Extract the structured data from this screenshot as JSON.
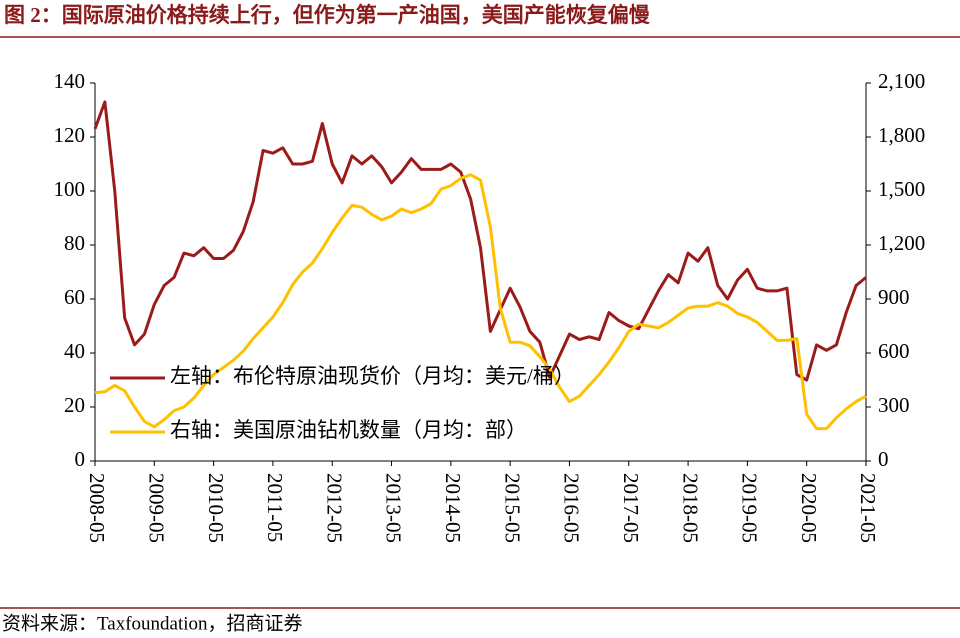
{
  "chart_data": {
    "type": "line",
    "title": "图 2：国际原油价格持续上行，但作为第一产油国，美国产能恢复偏慢",
    "source": "资料来源：Taxfoundation，招商证券",
    "categories": [
      "2008-05",
      null,
      null,
      null,
      null,
      null,
      "2009-05",
      null,
      null,
      null,
      null,
      null,
      "2010-05",
      null,
      null,
      null,
      null,
      null,
      "2011-05",
      null,
      null,
      null,
      null,
      null,
      "2012-05",
      null,
      null,
      null,
      null,
      null,
      "2013-05",
      null,
      null,
      null,
      null,
      null,
      "2014-05",
      null,
      null,
      null,
      null,
      null,
      "2015-05",
      null,
      null,
      null,
      null,
      null,
      "2016-05",
      null,
      null,
      null,
      null,
      null,
      "2017-05",
      null,
      null,
      null,
      null,
      null,
      "2018-05",
      null,
      null,
      null,
      null,
      null,
      "2019-05",
      null,
      null,
      null,
      null,
      null,
      "2020-05",
      null,
      null,
      null,
      null,
      null,
      "2021-05"
    ],
    "series": [
      {
        "name": "左轴：布伦特原油现货价（月均：美元/桶）",
        "color": "#9b1b1b",
        "axis": "y",
        "values": [
          123,
          133,
          100,
          53,
          43,
          47,
          58,
          65,
          68,
          77,
          76,
          79,
          75,
          75,
          78,
          85,
          96,
          115,
          114,
          116,
          110,
          110,
          111,
          125,
          110,
          103,
          113,
          110,
          113,
          109,
          103,
          107,
          112,
          108,
          108,
          108,
          110,
          107,
          97,
          79,
          48,
          56,
          64,
          57,
          48,
          44,
          31,
          39,
          47,
          45,
          46,
          45,
          55,
          52,
          50,
          49,
          56,
          63,
          69,
          66,
          77,
          74,
          79,
          65,
          60,
          67,
          71,
          64,
          63,
          63,
          64,
          32,
          30,
          43,
          41,
          43,
          55,
          65,
          68
        ]
      },
      {
        "name": "右轴：美国原油钻机数量（月均：部）",
        "color": "#ffc000",
        "axis": "y2",
        "values": [
          380,
          385,
          420,
          390,
          300,
          220,
          190,
          230,
          280,
          300,
          350,
          420,
          480,
          520,
          560,
          610,
          680,
          740,
          800,
          880,
          980,
          1050,
          1100,
          1180,
          1270,
          1350,
          1420,
          1410,
          1370,
          1340,
          1360,
          1400,
          1380,
          1400,
          1430,
          1510,
          1530,
          1570,
          1590,
          1560,
          1300,
          850,
          660,
          660,
          640,
          580,
          510,
          410,
          330,
          360,
          420,
          480,
          550,
          630,
          720,
          760,
          750,
          740,
          770,
          810,
          850,
          860,
          860,
          880,
          860,
          820,
          800,
          770,
          720,
          670,
          670,
          680,
          260,
          180,
          180,
          240,
          290,
          330,
          360
        ]
      }
    ],
    "ylim": [
      0,
      140
    ],
    "yticks": [
      0,
      20,
      40,
      60,
      80,
      100,
      120,
      140
    ],
    "y2lim": [
      0,
      2100
    ],
    "y2ticks": [
      0,
      300,
      600,
      900,
      {
        "value": 1200,
        "label": "1,200"
      },
      {
        "value": 1500,
        "label": "1,500"
      },
      {
        "value": 1800,
        "label": "1,800"
      },
      {
        "value": 2100,
        "label": "2,100"
      }
    ]
  }
}
